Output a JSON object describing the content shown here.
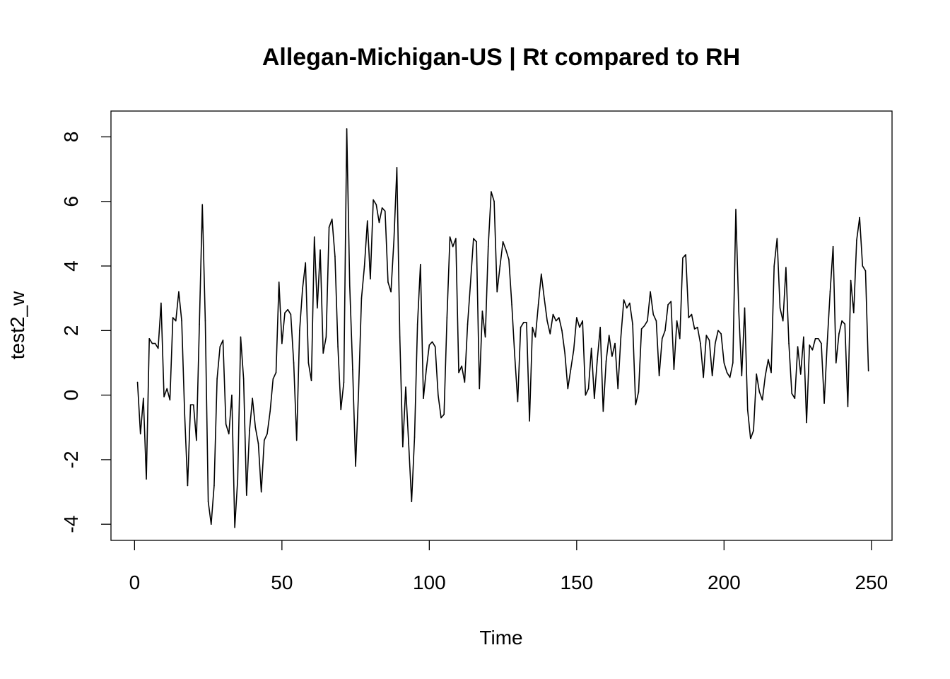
{
  "chart_data": {
    "type": "line",
    "title": "Allegan-Michigan-US | Rt compared to RH",
    "xlabel": "Time",
    "ylabel": "test2_w",
    "xlim": [
      -8,
      257
    ],
    "ylim": [
      -4.5,
      8.8
    ],
    "x_ticks": [
      0,
      50,
      100,
      150,
      200,
      250
    ],
    "y_ticks": [
      -4,
      -2,
      0,
      2,
      4,
      6,
      8
    ],
    "x_tick_labels": [
      "0",
      "50",
      "100",
      "150",
      "200",
      "250"
    ],
    "y_tick_labels": [
      "-4",
      "-2",
      "0",
      "2",
      "4",
      "6",
      "8"
    ],
    "grid": false,
    "legend": "none",
    "color": "#000000",
    "x_start": 1,
    "values": [
      0.4,
      -1.2,
      -0.1,
      -2.6,
      1.75,
      1.6,
      1.6,
      1.45,
      2.85,
      -0.05,
      0.2,
      -0.15,
      2.4,
      2.3,
      3.2,
      2.3,
      -0.6,
      -2.8,
      -0.3,
      -0.3,
      -1.4,
      2.2,
      5.9,
      2.3,
      -3.3,
      -4.0,
      -2.8,
      0.5,
      1.5,
      1.7,
      -0.9,
      -1.2,
      0.0,
      -4.1,
      -2.6,
      1.8,
      0.5,
      -3.1,
      -1.1,
      -0.1,
      -1.0,
      -1.5,
      -3.0,
      -1.4,
      -1.2,
      -0.5,
      0.5,
      0.7,
      3.5,
      1.6,
      2.55,
      2.65,
      2.5,
      1.0,
      -1.4,
      2.0,
      3.3,
      4.1,
      1.0,
      0.45,
      4.9,
      2.7,
      4.5,
      1.3,
      1.8,
      5.2,
      5.45,
      4.3,
      1.5,
      -0.45,
      0.4,
      8.25,
      3.4,
      0.8,
      -2.2,
      0.1,
      3.0,
      4.0,
      5.4,
      3.6,
      6.05,
      5.9,
      5.35,
      5.8,
      5.7,
      3.5,
      3.2,
      4.8,
      7.05,
      1.8,
      -1.6,
      0.25,
      -1.5,
      -3.3,
      -1.3,
      2.2,
      4.05,
      -0.1,
      0.8,
      1.55,
      1.65,
      1.5,
      0.0,
      -0.7,
      -0.6,
      2.4,
      4.9,
      4.6,
      4.85,
      0.7,
      0.9,
      0.4,
      2.2,
      3.5,
      4.85,
      4.75,
      0.2,
      2.6,
      1.8,
      4.6,
      6.3,
      6.0,
      3.2,
      4.0,
      4.75,
      4.5,
      4.2,
      2.8,
      1.2,
      -0.2,
      2.1,
      2.25,
      2.25,
      -0.8,
      2.1,
      1.8,
      2.8,
      3.75,
      3.0,
      2.3,
      1.9,
      2.5,
      2.3,
      2.4,
      2.0,
      1.3,
      0.2,
      0.8,
      1.4,
      2.4,
      2.1,
      2.3,
      0.0,
      0.2,
      1.45,
      -0.1,
      1.1,
      2.1,
      -0.5,
      1.05,
      1.85,
      1.2,
      1.6,
      0.2,
      1.8,
      2.95,
      2.7,
      2.85,
      2.2,
      -0.3,
      0.1,
      2.05,
      2.15,
      2.3,
      3.2,
      2.5,
      2.3,
      0.6,
      1.75,
      2.0,
      2.8,
      2.9,
      0.8,
      2.3,
      1.75,
      4.25,
      4.35,
      2.4,
      2.5,
      2.05,
      2.1,
      1.6,
      0.55,
      1.85,
      1.7,
      0.6,
      1.6,
      2.0,
      1.9,
      1.0,
      0.7,
      0.55,
      1.0,
      5.75,
      2.6,
      0.6,
      2.7,
      -0.45,
      -1.35,
      -1.1,
      0.65,
      0.1,
      -0.15,
      0.6,
      1.1,
      0.7,
      4.0,
      4.85,
      2.7,
      2.3,
      3.95,
      1.6,
      0.05,
      -0.1,
      1.5,
      0.65,
      1.8,
      -0.85,
      1.55,
      1.4,
      1.75,
      1.75,
      1.6,
      -0.25,
      1.6,
      3.2,
      4.6,
      1.0,
      1.9,
      2.3,
      2.2,
      -0.35,
      3.55,
      2.55,
      4.8,
      5.5,
      4.0,
      3.85,
      0.75
    ]
  }
}
